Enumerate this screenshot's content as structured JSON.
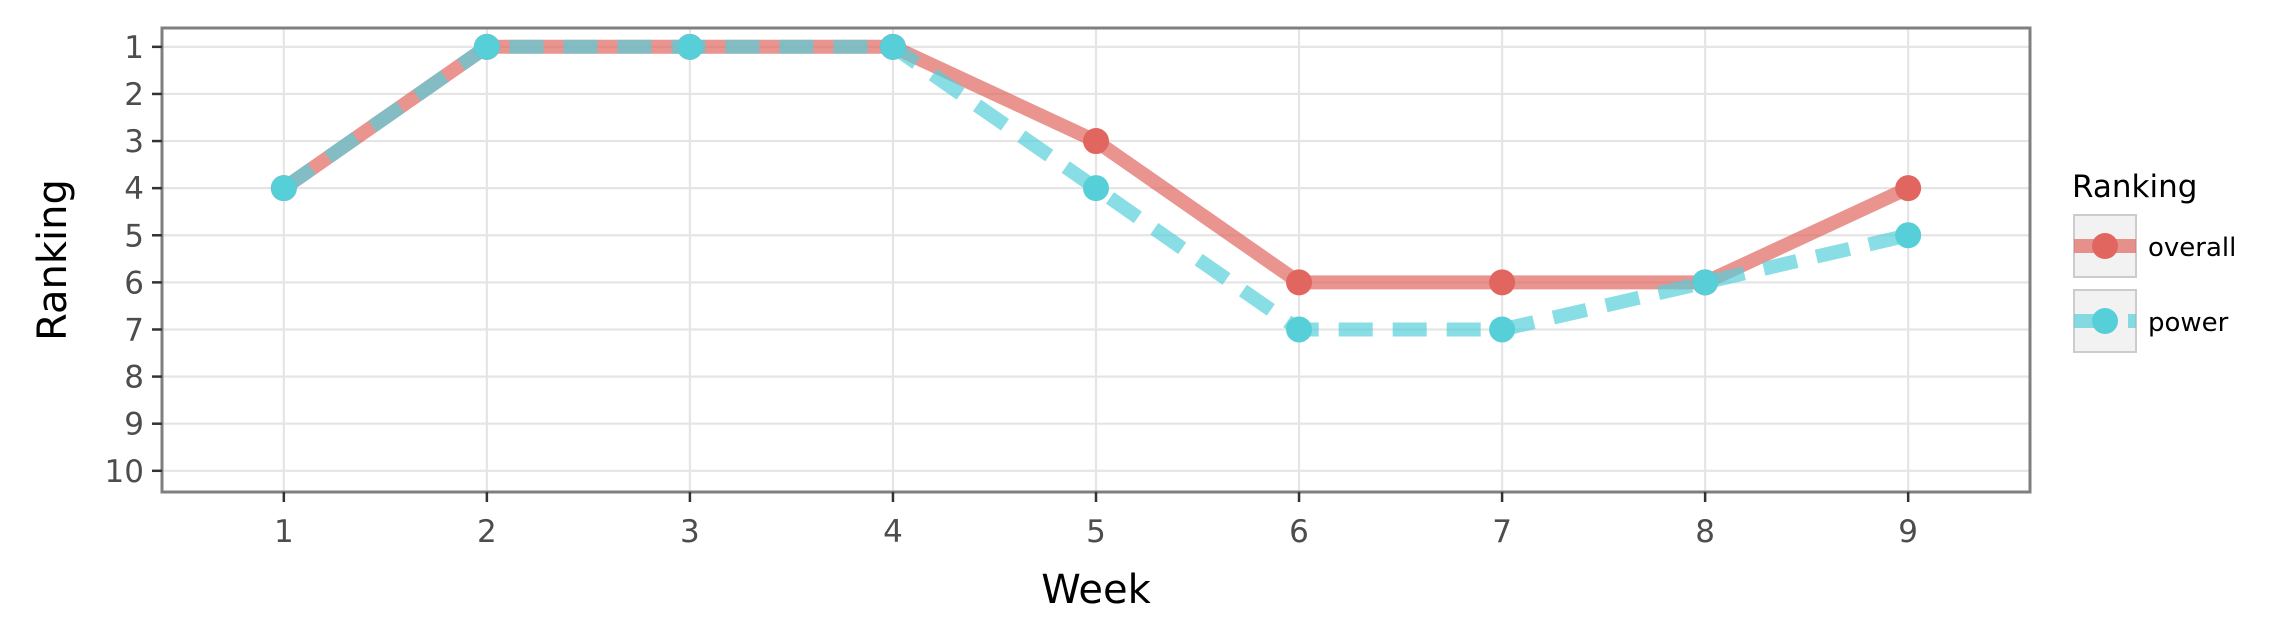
{
  "chart_data": {
    "type": "line",
    "xlabel": "Week",
    "ylabel": "Ranking",
    "x": [
      1,
      2,
      3,
      4,
      5,
      6,
      7,
      8,
      9
    ],
    "xlim": [
      0.4,
      9.6
    ],
    "ylim": [
      10.45,
      0.6
    ],
    "y_axis_reversed": true,
    "x_ticks": [
      "1",
      "2",
      "3",
      "4",
      "5",
      "6",
      "7",
      "8",
      "9"
    ],
    "y_ticks": [
      "1",
      "2",
      "3",
      "4",
      "5",
      "6",
      "7",
      "8",
      "9",
      "10"
    ],
    "grid": true,
    "legend": {
      "title": "Ranking",
      "placement": "right"
    },
    "series": [
      {
        "name": "overall",
        "values": [
          4,
          1,
          1,
          1,
          3,
          6,
          6,
          6,
          4
        ],
        "color": "#e0665f",
        "line_style": "solid"
      },
      {
        "name": "power",
        "values": [
          4,
          1,
          1,
          1,
          4,
          7,
          7,
          6,
          5
        ],
        "color": "#57cfd9",
        "line_style": "dashed"
      }
    ]
  }
}
